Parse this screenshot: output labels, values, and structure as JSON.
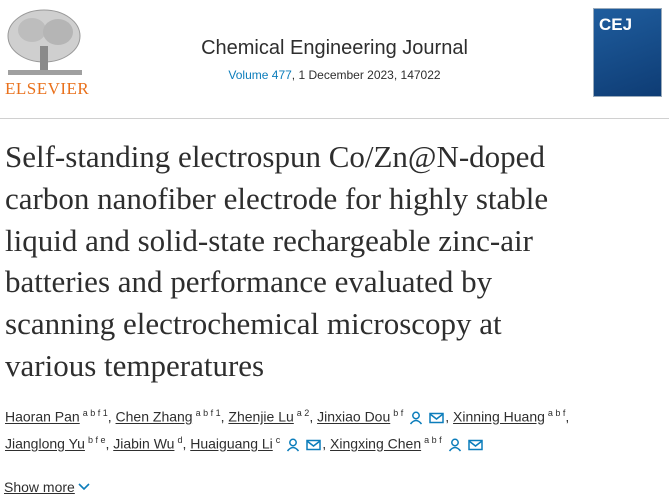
{
  "header": {
    "publisher": "ELSEVIER",
    "journal": "Chemical Engineering Journal",
    "volume": "Volume 477",
    "issue_info": ", 1 December 2023, 147022",
    "cover_text": "CEJ"
  },
  "article": {
    "title_lines": [
      "Self-standing electrospun Co/Zn@N-doped",
      "carbon nanofiber electrode for highly stable",
      "liquid and solid-state rechargeable zinc-air",
      "batteries and performance evaluated by",
      "scanning electrochemical microscopy at",
      "various temperatures"
    ],
    "separator": ",",
    "authors": [
      [
        {
          "name": "Haoran Pan",
          "sup": "a b f 1"
        },
        {
          "name": "Chen Zhang",
          "sup": "a b f 1"
        },
        {
          "name": "Zhenjie Lu",
          "sup": "a 2"
        },
        {
          "name": "Jinxiao Dou",
          "sup": "b f",
          "corresponding": true
        },
        {
          "name": "Xinning Huang",
          "sup": "a b f"
        }
      ],
      [
        {
          "name": "Jianglong Yu",
          "sup": "b f e"
        },
        {
          "name": "Jiabin Wu",
          "sup": "d"
        },
        {
          "name": "Huaiguang Li",
          "sup": "c",
          "corresponding": true
        },
        {
          "name": "Xingxing Chen",
          "sup": "a b f",
          "corresponding": true
        }
      ]
    ],
    "show_more": "Show more"
  }
}
